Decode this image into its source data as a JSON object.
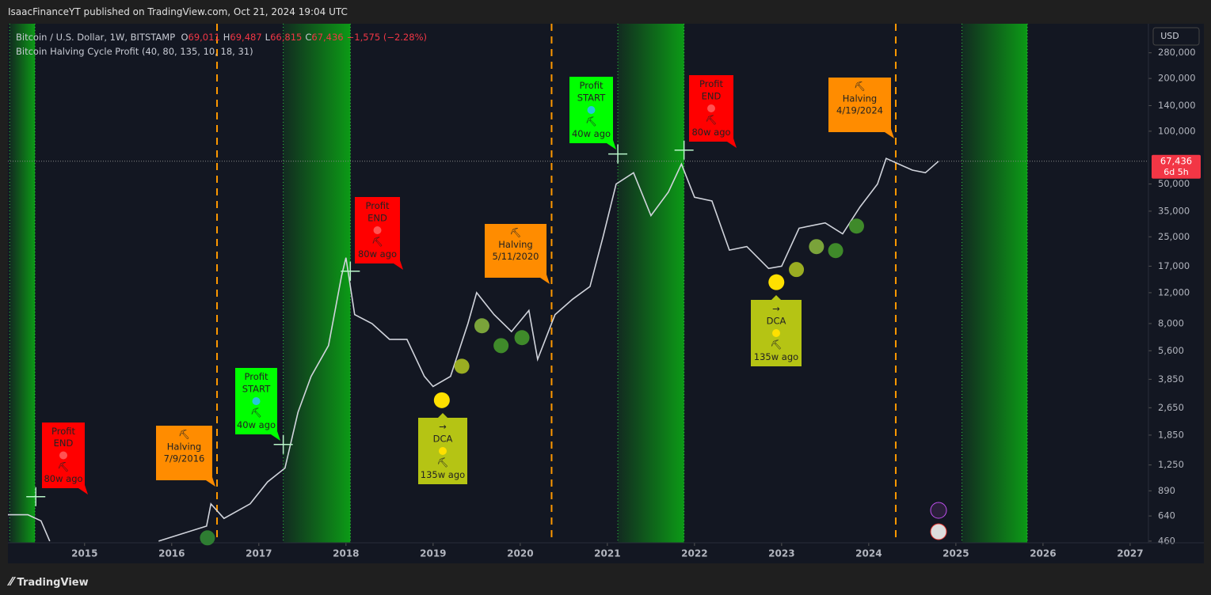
{
  "header": {
    "published": "IsaacFinanceYT published on TradingView.com, Oct 21, 2024 19:04 UTC"
  },
  "legend": {
    "symbol": "Bitcoin / U.S. Dollar, 1W, BITSTAMP",
    "ohlc": [
      "O",
      "69,011",
      "H",
      "69,487",
      "L",
      "66,815",
      "C",
      "67,436",
      "−1,575 (−2.28%)"
    ],
    "indicator": "Bitcoin Halving Cycle Profit (40, 80, 135, 10, 18, 31)"
  },
  "currency": "USD",
  "last_price": {
    "value": 67436,
    "label": "67,436",
    "countdown": "6d 5h"
  },
  "footer": {
    "brand": "TradingView"
  },
  "chart_data": {
    "type": "line",
    "log_scale": true,
    "xlim": [
      2014.12,
      2027.21
    ],
    "xticks": [
      2015,
      2016,
      2017,
      2018,
      2019,
      2020,
      2021,
      2022,
      2023,
      2024,
      2025,
      2026,
      2027
    ],
    "ylim": [
      450,
      410000
    ],
    "yticks": [
      {
        "value": 280000,
        "label": "280,000"
      },
      {
        "value": 200000,
        "label": "200,000"
      },
      {
        "value": 140000,
        "label": "140,000"
      },
      {
        "value": 100000,
        "label": "100,000"
      },
      {
        "value": 50000,
        "label": "50,000"
      },
      {
        "value": 35000,
        "label": "35,000"
      },
      {
        "value": 25000,
        "label": "25,000"
      },
      {
        "value": 17000,
        "label": "17,000"
      },
      {
        "value": 12000,
        "label": "12,000"
      },
      {
        "value": 8000,
        "label": "8,000"
      },
      {
        "value": 5600,
        "label": "5,600"
      },
      {
        "value": 3850,
        "label": "3,850"
      },
      {
        "value": 2650,
        "label": "2,650"
      },
      {
        "value": 1850,
        "label": "1,850"
      },
      {
        "value": 1250,
        "label": "1,250"
      },
      890,
      640,
      460
    ],
    "series": [
      {
        "name": "Bitcoin / U.S. Dollar",
        "color": "#d1d4dc",
        "x": [
          2014.12,
          2014.35,
          2014.5,
          2014.6,
          null,
          2015.85,
          2016.4,
          2016.45,
          2016.6,
          2016.9,
          2017.1,
          2017.3,
          2017.45,
          2017.6,
          2017.8,
          2017.95,
          2018.0,
          2018.1,
          2018.3,
          2018.5,
          2018.7,
          2018.9,
          2019.0,
          2019.2,
          2019.4,
          2019.5,
          2019.7,
          2019.9,
          2020.1,
          2020.2,
          2020.4,
          2020.6,
          2020.8,
          2020.95,
          2021.1,
          2021.3,
          2021.5,
          2021.7,
          2021.85,
          2022.0,
          2022.2,
          2022.4,
          2022.6,
          2022.85,
          2023.0,
          2023.2,
          2023.5,
          2023.7,
          2023.9,
          2024.1,
          2024.2,
          2024.5,
          2024.65,
          2024.8
        ],
        "values": [
          650,
          650,
          600,
          460,
          null,
          460,
          560,
          750,
          620,
          750,
          1000,
          1200,
          2500,
          4000,
          6000,
          15000,
          19000,
          9000,
          8000,
          6500,
          6500,
          4000,
          3500,
          4000,
          8000,
          12000,
          9000,
          7200,
          9500,
          5000,
          9000,
          11000,
          13000,
          25000,
          50000,
          58000,
          33000,
          45000,
          65000,
          42000,
          40000,
          21000,
          22000,
          16500,
          17000,
          28000,
          30000,
          26000,
          37000,
          50000,
          70000,
          60000,
          58000,
          67436
        ]
      }
    ],
    "halvings": [
      2016.52,
      2020.36,
      2024.31
    ],
    "halving_color": "#ff9800",
    "profit_zones": [
      [
        2014.14,
        2014.43
      ],
      [
        2017.28,
        2018.05
      ],
      [
        2021.12,
        2021.88
      ],
      [
        2025.07,
        2025.82
      ]
    ],
    "zone_color": "#0c9a16",
    "dots": {
      "x": [
        2016.41,
        2019.1,
        2019.33,
        2019.56,
        2019.78,
        2020.02,
        2022.94,
        2023.17,
        2023.4,
        2023.62,
        2023.86
      ],
      "values": [
        480,
        2925,
        4570,
        7770,
        5990,
        6650,
        13770,
        16260,
        21970,
        20860,
        28770
      ],
      "colors": [
        "#2e7d32",
        "#ffe000",
        "#9aad22",
        "#7aa33a",
        "#3f8a2a",
        "#3f8a2a",
        "#ffe000",
        "#9aad22",
        "#7aa33a",
        "#3f8a2a",
        "#3f8a2a"
      ]
    },
    "crosses": {
      "x": [
        2014.44,
        2017.28,
        2018.05,
        2021.12,
        2021.88
      ],
      "values": [
        824,
        1637,
        15920,
        74100,
        78000
      ],
      "color": "#b9f6ca"
    },
    "labels": [
      {
        "lines": [
          "Profit",
          "END",
          "⛏",
          "80w ago"
        ],
        "color": "#ff0000"
      },
      {
        "lines": [
          "⛏",
          "Halving",
          "7/9/2016"
        ],
        "color": "#ff8c00"
      },
      {
        "lines": [
          "Profit",
          "START",
          "⛏",
          "40w ago"
        ],
        "color": "#00ff00"
      },
      {
        "lines": [
          "Profit",
          "END",
          "⛏",
          "80w ago"
        ],
        "color": "#ff0000"
      },
      {
        "lines": [
          "→",
          "DCA",
          "⛏",
          "135w ago"
        ],
        "color": "#b5c414"
      },
      {
        "lines": [
          "⛏",
          "Halving",
          "5/11/2020"
        ],
        "color": "#ff8c00"
      },
      {
        "lines": [
          "Profit",
          "START",
          "⛏",
          "40w ago"
        ],
        "color": "#00ff00"
      },
      {
        "lines": [
          "Profit",
          "END",
          "⛏",
          "80w ago"
        ],
        "color": "#ff0000"
      },
      {
        "lines": [
          "→",
          "DCA",
          "⛏",
          "135w ago"
        ],
        "color": "#b5c414"
      },
      {
        "lines": [
          "⛏",
          "Halving",
          "4/19/2024"
        ],
        "color": "#ff8c00"
      }
    ]
  }
}
